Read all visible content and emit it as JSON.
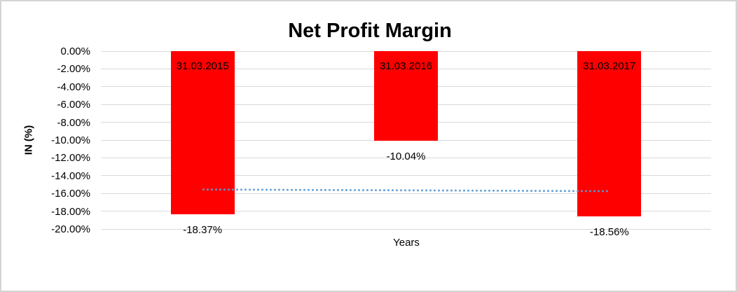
{
  "chart_data": {
    "type": "bar",
    "title": "Net Profit Margin",
    "xlabel": "Years",
    "ylabel": "IN (%)",
    "categories": [
      "31.03.2015",
      "31.03.2016",
      "31.03.2017"
    ],
    "series": [
      {
        "name": "Net Profit Margin",
        "values": [
          -18.37,
          -10.04,
          -18.56
        ]
      }
    ],
    "data_labels": [
      "-18.37%",
      "-10.04%",
      "-18.56%"
    ],
    "y_ticks": [
      "0.00%",
      "-2.00%",
      "-4.00%",
      "-6.00%",
      "-8.00%",
      "-10.00%",
      "-12.00%",
      "-14.00%",
      "-16.00%",
      "-18.00%",
      "-20.00%"
    ],
    "ylim": [
      -20,
      0
    ],
    "grid": true,
    "legend_position": "none",
    "colors": {
      "bar": "#ff0000",
      "gridline": "#d9d9d9",
      "trendline": "#5b9bd5",
      "text": "#000000",
      "chart_border": "#d4d4d4"
    },
    "trendline": {
      "type": "linear",
      "dash": "dotted",
      "value_start": -15.56,
      "value_end": -15.75,
      "from_category_index": 0,
      "to_category_index": 2
    }
  }
}
